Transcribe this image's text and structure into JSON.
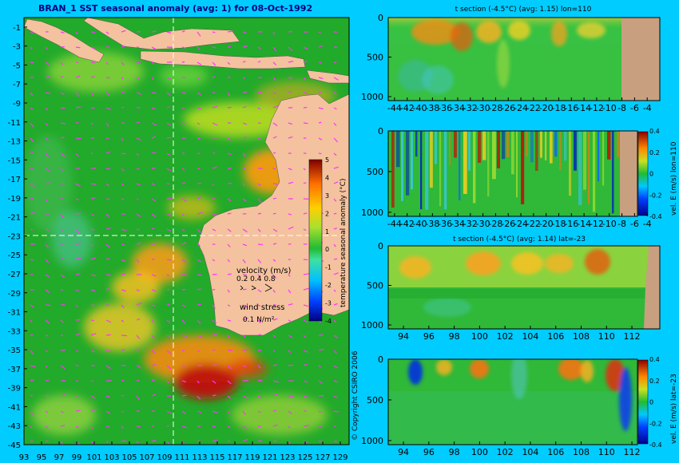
{
  "page": {
    "title": "BRAN_1 SST seasonal anomaly (avg: 1) for 08-Oct-1992",
    "copyright": "© Copyright CSIRO 2006"
  },
  "map": {
    "xticks": [
      "93",
      "95",
      "97",
      "99",
      "101",
      "103",
      "105",
      "107",
      "109",
      "111",
      "113",
      "115",
      "117",
      "119",
      "121",
      "123",
      "125",
      "127",
      "129"
    ],
    "yticks": [
      "-1",
      "-3",
      "-5",
      "-7",
      "-9",
      "-11",
      "-13",
      "-15",
      "-17",
      "-19",
      "-21",
      "-23",
      "-25",
      "-27",
      "-29",
      "-31",
      "-33",
      "-35",
      "-37",
      "-39",
      "-41",
      "-43",
      "-45"
    ],
    "lon_range": [
      93,
      130
    ],
    "lat_range": [
      -45,
      0
    ],
    "section_lon": 110,
    "section_lat": -23,
    "colors": {
      "ocean_base": "#22aa2a",
      "land": "#f4c29e",
      "arrows": "#ff33ff",
      "guide": "#ffffff"
    },
    "colorbar": {
      "label": "temperature seasonal anomaly (°C)",
      "ticks": [
        "5",
        "4",
        "3",
        "2",
        "1",
        "0",
        "-1",
        "-2",
        "-3",
        "-4"
      ],
      "range": [
        -4,
        5
      ]
    },
    "legend": {
      "velocity_label": "velocity (m/s)",
      "velocity_scale": "0.2 0.4 0.8",
      "wind_label": "wind stress",
      "wind_scale": "0.1 N/m²"
    }
  },
  "chart_data": [
    {
      "type": "heatmap",
      "title": "BRAN_1 SST seasonal anomaly (avg: 1) for 08-Oct-1992",
      "xlabel": "",
      "ylabel": "",
      "xlim": [
        93,
        130
      ],
      "ylim": [
        -45,
        0
      ],
      "colorbar_label": "temperature seasonal anomaly (°C)",
      "colorbar_range": [
        -4,
        5
      ],
      "grid": false
    },
    {
      "type": "heatmap",
      "title": "t section (-4.5°C) (avg: 1.15) lon=110",
      "xticks": [
        "-44",
        "-42",
        "-40",
        "-38",
        "-36",
        "-34",
        "-32",
        "-30",
        "-28",
        "-26",
        "-24",
        "-22",
        "-20",
        "-18",
        "-16",
        "-14",
        "-12",
        "-10",
        "-8",
        "-6",
        "-4"
      ],
      "yticks": [
        "0",
        "500",
        "1000"
      ],
      "xlim": [
        -45,
        -2
      ],
      "ylim": [
        0,
        1050
      ],
      "grid": false
    },
    {
      "type": "heatmap",
      "title": "",
      "xticks": [
        "-44",
        "-42",
        "-40",
        "-38",
        "-36",
        "-34",
        "-32",
        "-30",
        "-28",
        "-26",
        "-24",
        "-22",
        "-20",
        "-18",
        "-16",
        "-14",
        "-12",
        "-10",
        "-8",
        "-6",
        "-4"
      ],
      "yticks": [
        "0",
        "500",
        "1000"
      ],
      "xlim": [
        -45,
        -2
      ],
      "ylim": [
        0,
        1050
      ],
      "colorbar_label": "vel. E (m/s) lon=110",
      "colorbar_ticks": [
        "0.4",
        "0.2",
        "0",
        "-0.2",
        "-0.4"
      ],
      "colorbar_range": [
        -0.4,
        0.4
      ],
      "grid": false
    },
    {
      "type": "heatmap",
      "title": "t section (-4.5°C) (avg: 1.14) lat=-23",
      "xticks": [
        "94",
        "96",
        "98",
        "100",
        "102",
        "104",
        "106",
        "108",
        "110",
        "112"
      ],
      "yticks": [
        "0",
        "500",
        "1000"
      ],
      "xlim": [
        92.8,
        114.2
      ],
      "ylim": [
        0,
        1050
      ],
      "grid": false
    },
    {
      "type": "heatmap",
      "title": "",
      "xticks": [
        "94",
        "96",
        "98",
        "100",
        "102",
        "104",
        "106",
        "108",
        "110",
        "112"
      ],
      "yticks": [
        "0",
        "500",
        "1000"
      ],
      "xlim": [
        92.8,
        114.2
      ],
      "ylim": [
        0,
        1050
      ],
      "colorbar_label": "vel. E (m/s) lat=-23",
      "colorbar_ticks": [
        "0.4",
        "0.2",
        "0",
        "-0.2",
        "-0.4"
      ],
      "colorbar_range": [
        -0.4,
        0.4
      ],
      "grid": false
    }
  ]
}
